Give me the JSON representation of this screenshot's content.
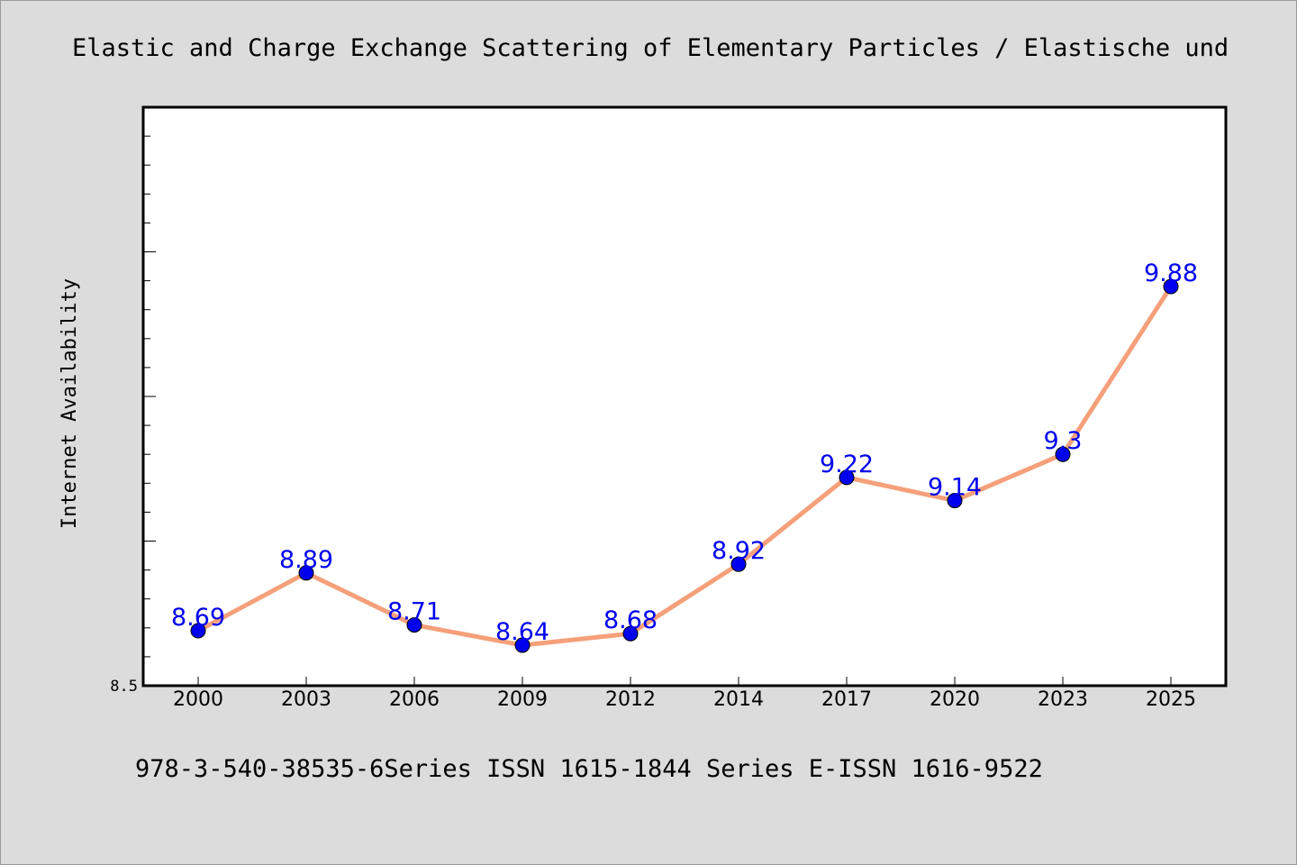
{
  "chart_data": {
    "type": "line",
    "title": "Elastic and Charge Exchange Scattering of Elementary Particles / Elastische und",
    "ylabel": "Internet Availability",
    "xlabel": "",
    "footer": "978-3-540-38535-6Series ISSN 1615-1844 Series E-ISSN 1616-9522",
    "categories": [
      "2000",
      "2003",
      "2006",
      "2009",
      "2012",
      "2014",
      "2017",
      "2020",
      "2023",
      "2025"
    ],
    "series": [
      {
        "values": [
          8.69,
          8.89,
          8.71,
          8.64,
          8.68,
          8.92,
          9.22,
          9.14,
          9.3,
          9.88
        ]
      }
    ],
    "data_labels": [
      "8.69",
      "8.89",
      "8.71",
      "8.64",
      "8.68",
      "8.92",
      "9.22",
      "9.14",
      "9.3",
      "9.88"
    ],
    "ylim": [
      8.5,
      10.5
    ],
    "yticks_labeled": [
      "8.5"
    ],
    "grid": false,
    "legend": "none",
    "colors": {
      "line": "#f5a07a",
      "marker": "#0000ee",
      "label": "#0000ee",
      "background": "#dcdcdc",
      "plot_bg": "#ffffff"
    }
  }
}
